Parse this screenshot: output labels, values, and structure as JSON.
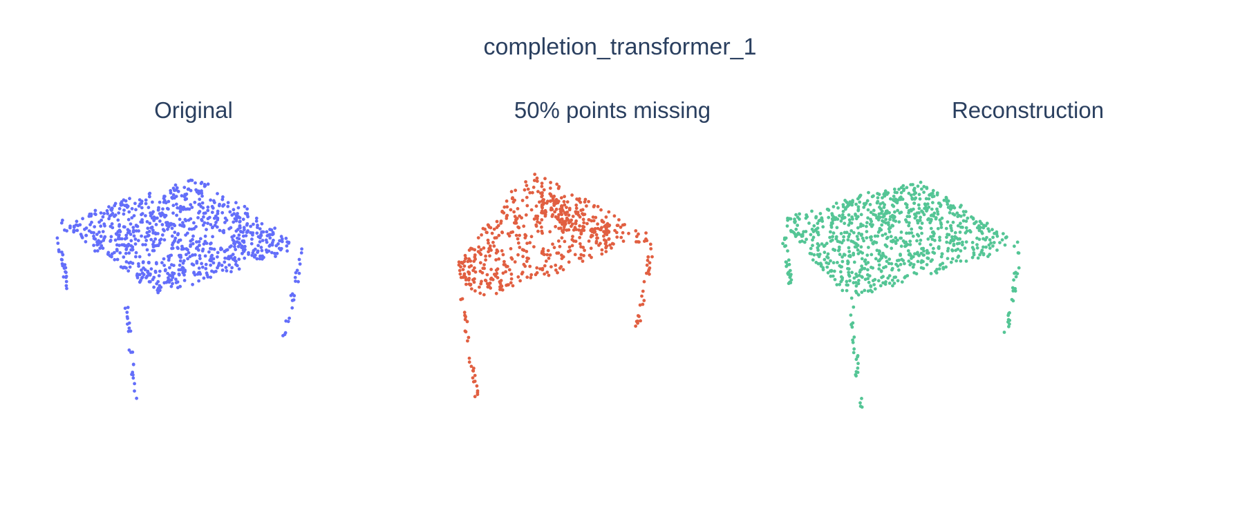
{
  "title": "completion_transformer_1",
  "chart_data": [
    {
      "type": "scatter",
      "title": "Original",
      "color": "#636efa",
      "point_cloud_shape": "table: tilted square tabletop with four legs (full point cloud)",
      "point_count_estimate": 1000,
      "series": [
        {
          "values": []
        }
      ]
    },
    {
      "type": "scatter",
      "title": "50% points missing",
      "color": "#e15f41",
      "point_cloud_shape": "table: partial tabletop (about half the points) with two visible legs",
      "point_count_estimate": 500,
      "series": [
        {
          "values": []
        }
      ]
    },
    {
      "type": "scatter",
      "title": "Reconstruction",
      "color": "#54c595",
      "point_cloud_shape": "table: reconstructed square tabletop with four legs",
      "point_count_estimate": 1000,
      "series": [
        {
          "values": []
        }
      ]
    }
  ]
}
